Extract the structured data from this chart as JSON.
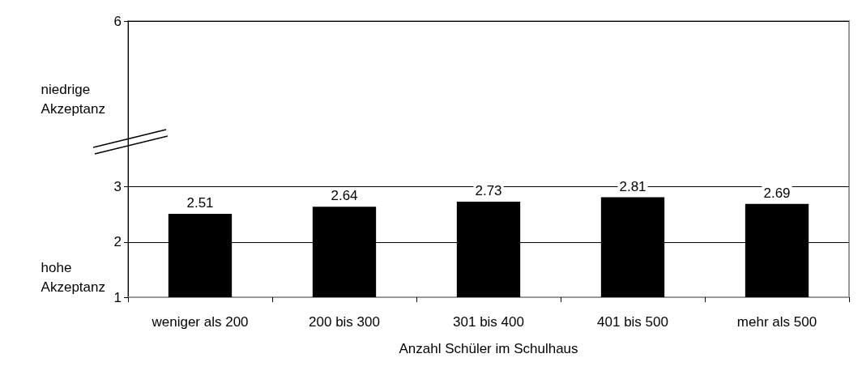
{
  "chart_data": {
    "type": "bar",
    "xlabel": "Anzahl Schüler im Schulhaus",
    "categories": [
      "weniger als 200",
      "200 bis 300",
      "301 bis 400",
      "401 bis 500",
      "mehr als 500"
    ],
    "values": [
      2.51,
      2.64,
      2.73,
      2.81,
      2.69
    ],
    "color": "#000000",
    "ylim": [
      1,
      6
    ],
    "yticks": [
      1,
      2,
      3,
      6
    ],
    "annotations": [
      "niedrige\nAkzeptanz",
      "hohe\nAkzeptanz"
    ],
    "grid": "y",
    "data_labels": true
  }
}
